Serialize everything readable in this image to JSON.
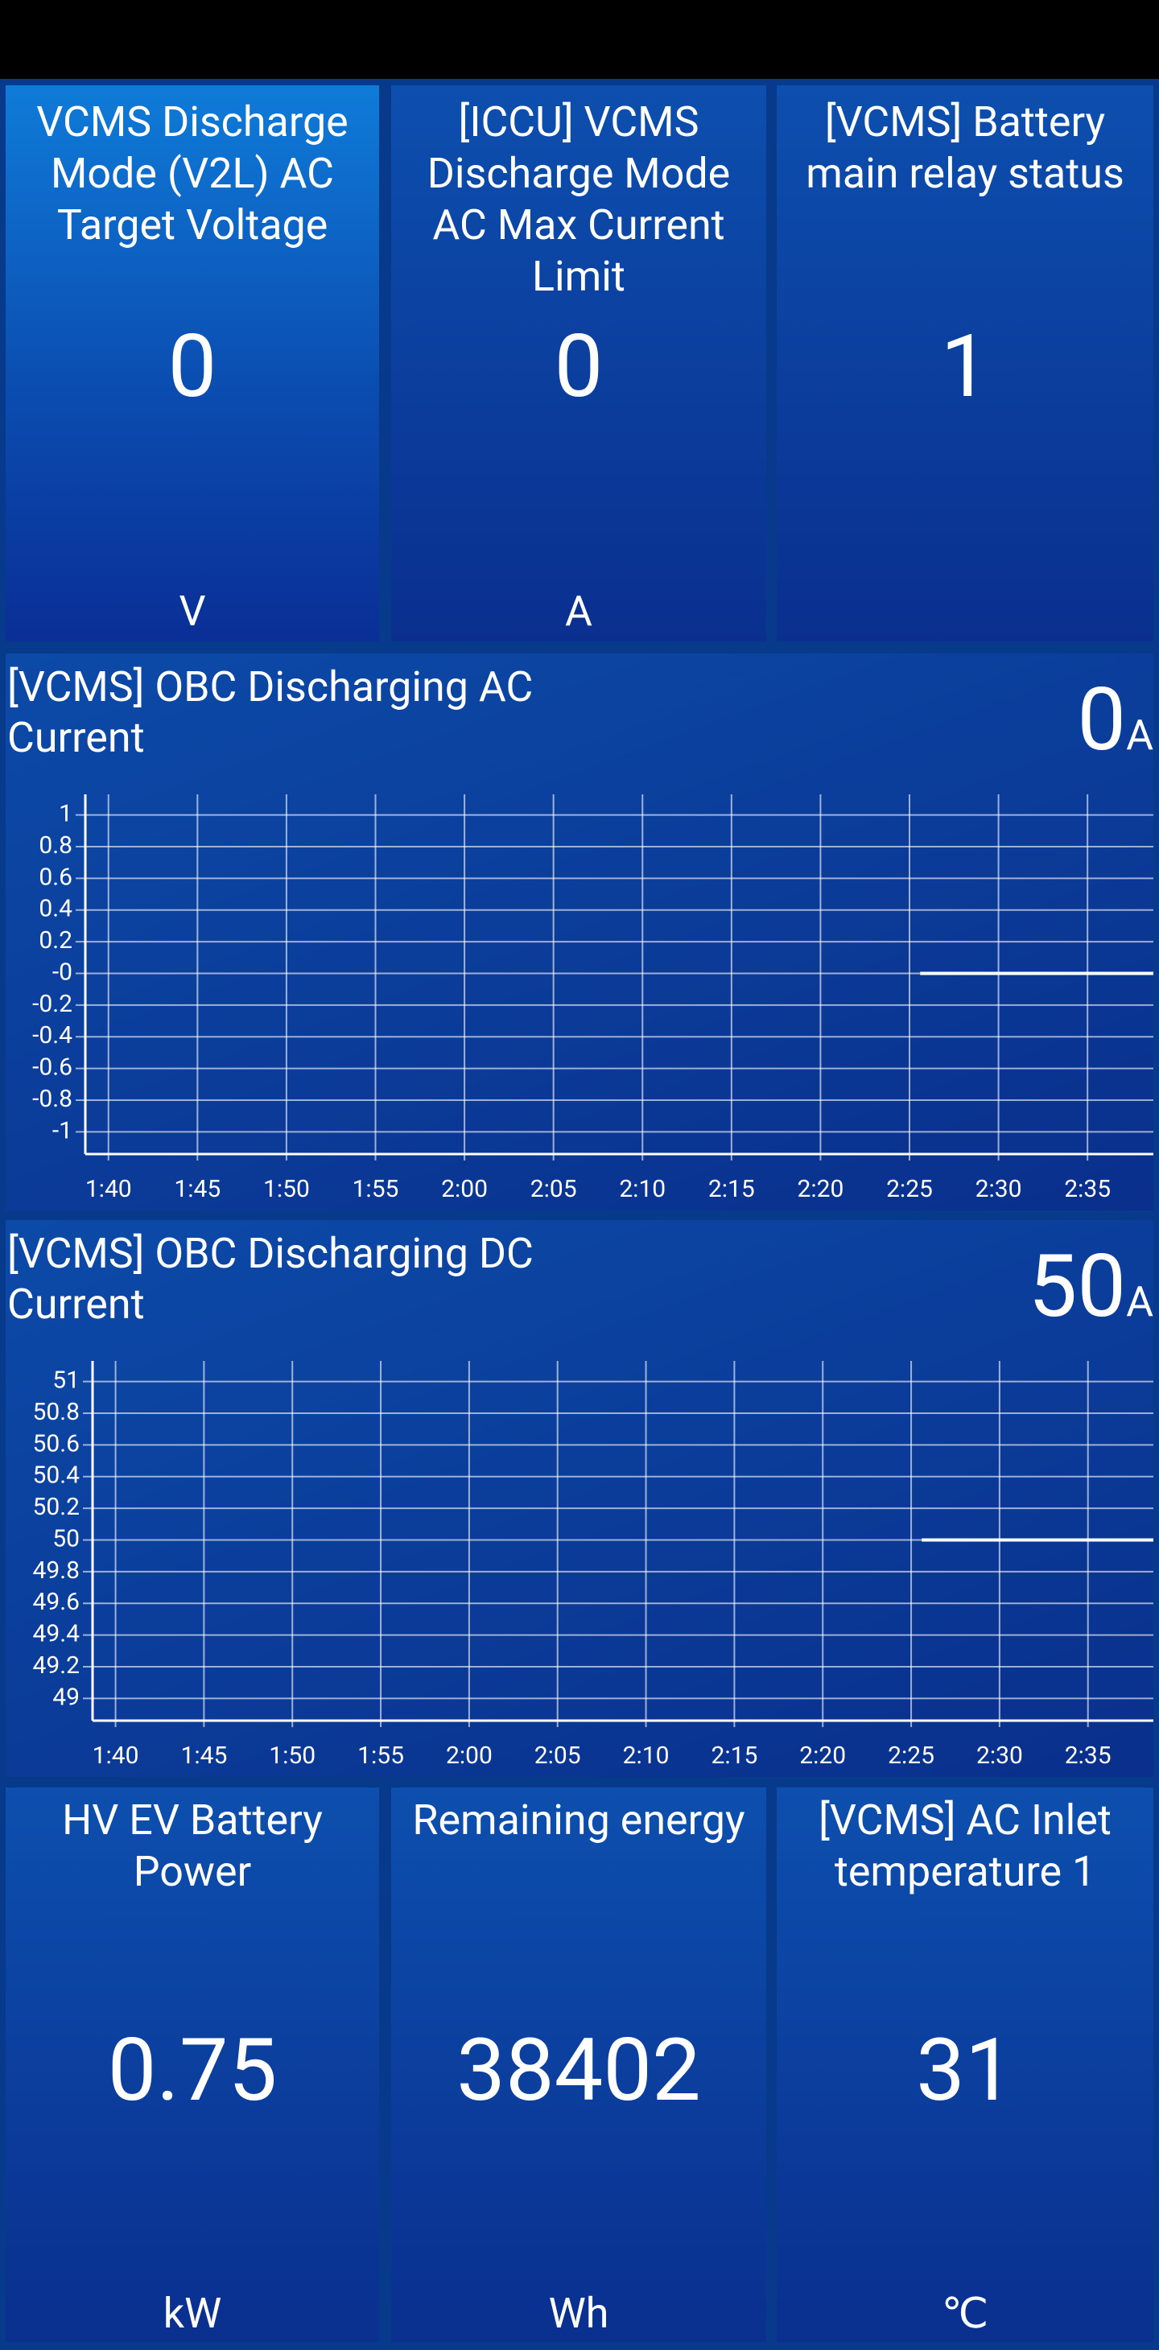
{
  "tiles": [
    {
      "title": "VCMS Discharge Mode (V2L) AC Target Voltage",
      "value": 0,
      "unit": "V"
    },
    {
      "title": "[ICCU] VCMS Discharge Mode AC Max Current Limit",
      "value": 0,
      "unit": "A"
    },
    {
      "title": "[VCMS] Battery main relay status",
      "value": 1
    },
    {
      "title": "HV EV Battery Power",
      "value": 0.75,
      "unit": "kW"
    },
    {
      "title": "Remaining energy",
      "value": 38402,
      "unit": "Wh"
    },
    {
      "title": "[VCMS] AC Inlet temperature 1",
      "value": 31,
      "unit": "℃"
    }
  ],
  "chart_data": [
    {
      "type": "line",
      "title": "[VCMS] OBC Discharging AC Current",
      "value": 0,
      "unit": "A",
      "x": [
        145.6,
        158.7
      ],
      "series": [
        {
          "color": "#ffffff",
          "values": [
            0,
            0
          ]
        }
      ],
      "xlim": [
        98.7,
        158.7
      ],
      "xticks": [
        {
          "value": 100,
          "label": "1:40"
        },
        {
          "value": 105,
          "label": "1:45"
        },
        {
          "value": 110,
          "label": "1:50"
        },
        {
          "value": 115,
          "label": "1:55"
        },
        {
          "value": 120,
          "label": "2:00"
        },
        {
          "value": 125,
          "label": "2:05"
        },
        {
          "value": 130,
          "label": "2:10"
        },
        {
          "value": 135,
          "label": "2:15"
        },
        {
          "value": 140,
          "label": "2:20"
        },
        {
          "value": 145,
          "label": "2:25"
        },
        {
          "value": 150,
          "label": "2:30"
        },
        {
          "value": 155,
          "label": "2:35"
        }
      ],
      "ylim": [
        -1.14,
        1.13
      ],
      "yticks": [
        1,
        0.8,
        0.6,
        0.4,
        0.2,
        {
          "value": 0,
          "label": "-0"
        },
        -0.2,
        -0.4,
        -0.6,
        -0.8,
        -1
      ],
      "grid": true
    },
    {
      "type": "line",
      "title": "[VCMS] OBC Discharging DC Current",
      "value": 50,
      "unit": "A",
      "x": [
        145.6,
        158.7
      ],
      "series": [
        {
          "color": "#ffffff",
          "values": [
            50,
            50
          ]
        }
      ],
      "xlim": [
        98.7,
        158.7
      ],
      "xticks": [
        {
          "value": 100,
          "label": "1:40"
        },
        {
          "value": 105,
          "label": "1:45"
        },
        {
          "value": 110,
          "label": "1:50"
        },
        {
          "value": 115,
          "label": "1:55"
        },
        {
          "value": 120,
          "label": "2:00"
        },
        {
          "value": 125,
          "label": "2:05"
        },
        {
          "value": 130,
          "label": "2:10"
        },
        {
          "value": 135,
          "label": "2:15"
        },
        {
          "value": 140,
          "label": "2:20"
        },
        {
          "value": 145,
          "label": "2:25"
        },
        {
          "value": 150,
          "label": "2:30"
        },
        {
          "value": 155,
          "label": "2:35"
        }
      ],
      "ylim": [
        48.86,
        51.13
      ],
      "yticks": [
        51,
        50.8,
        50.6,
        50.4,
        50.2,
        50,
        49.8,
        49.6,
        49.4,
        49.2,
        49
      ],
      "grid": true
    }
  ]
}
